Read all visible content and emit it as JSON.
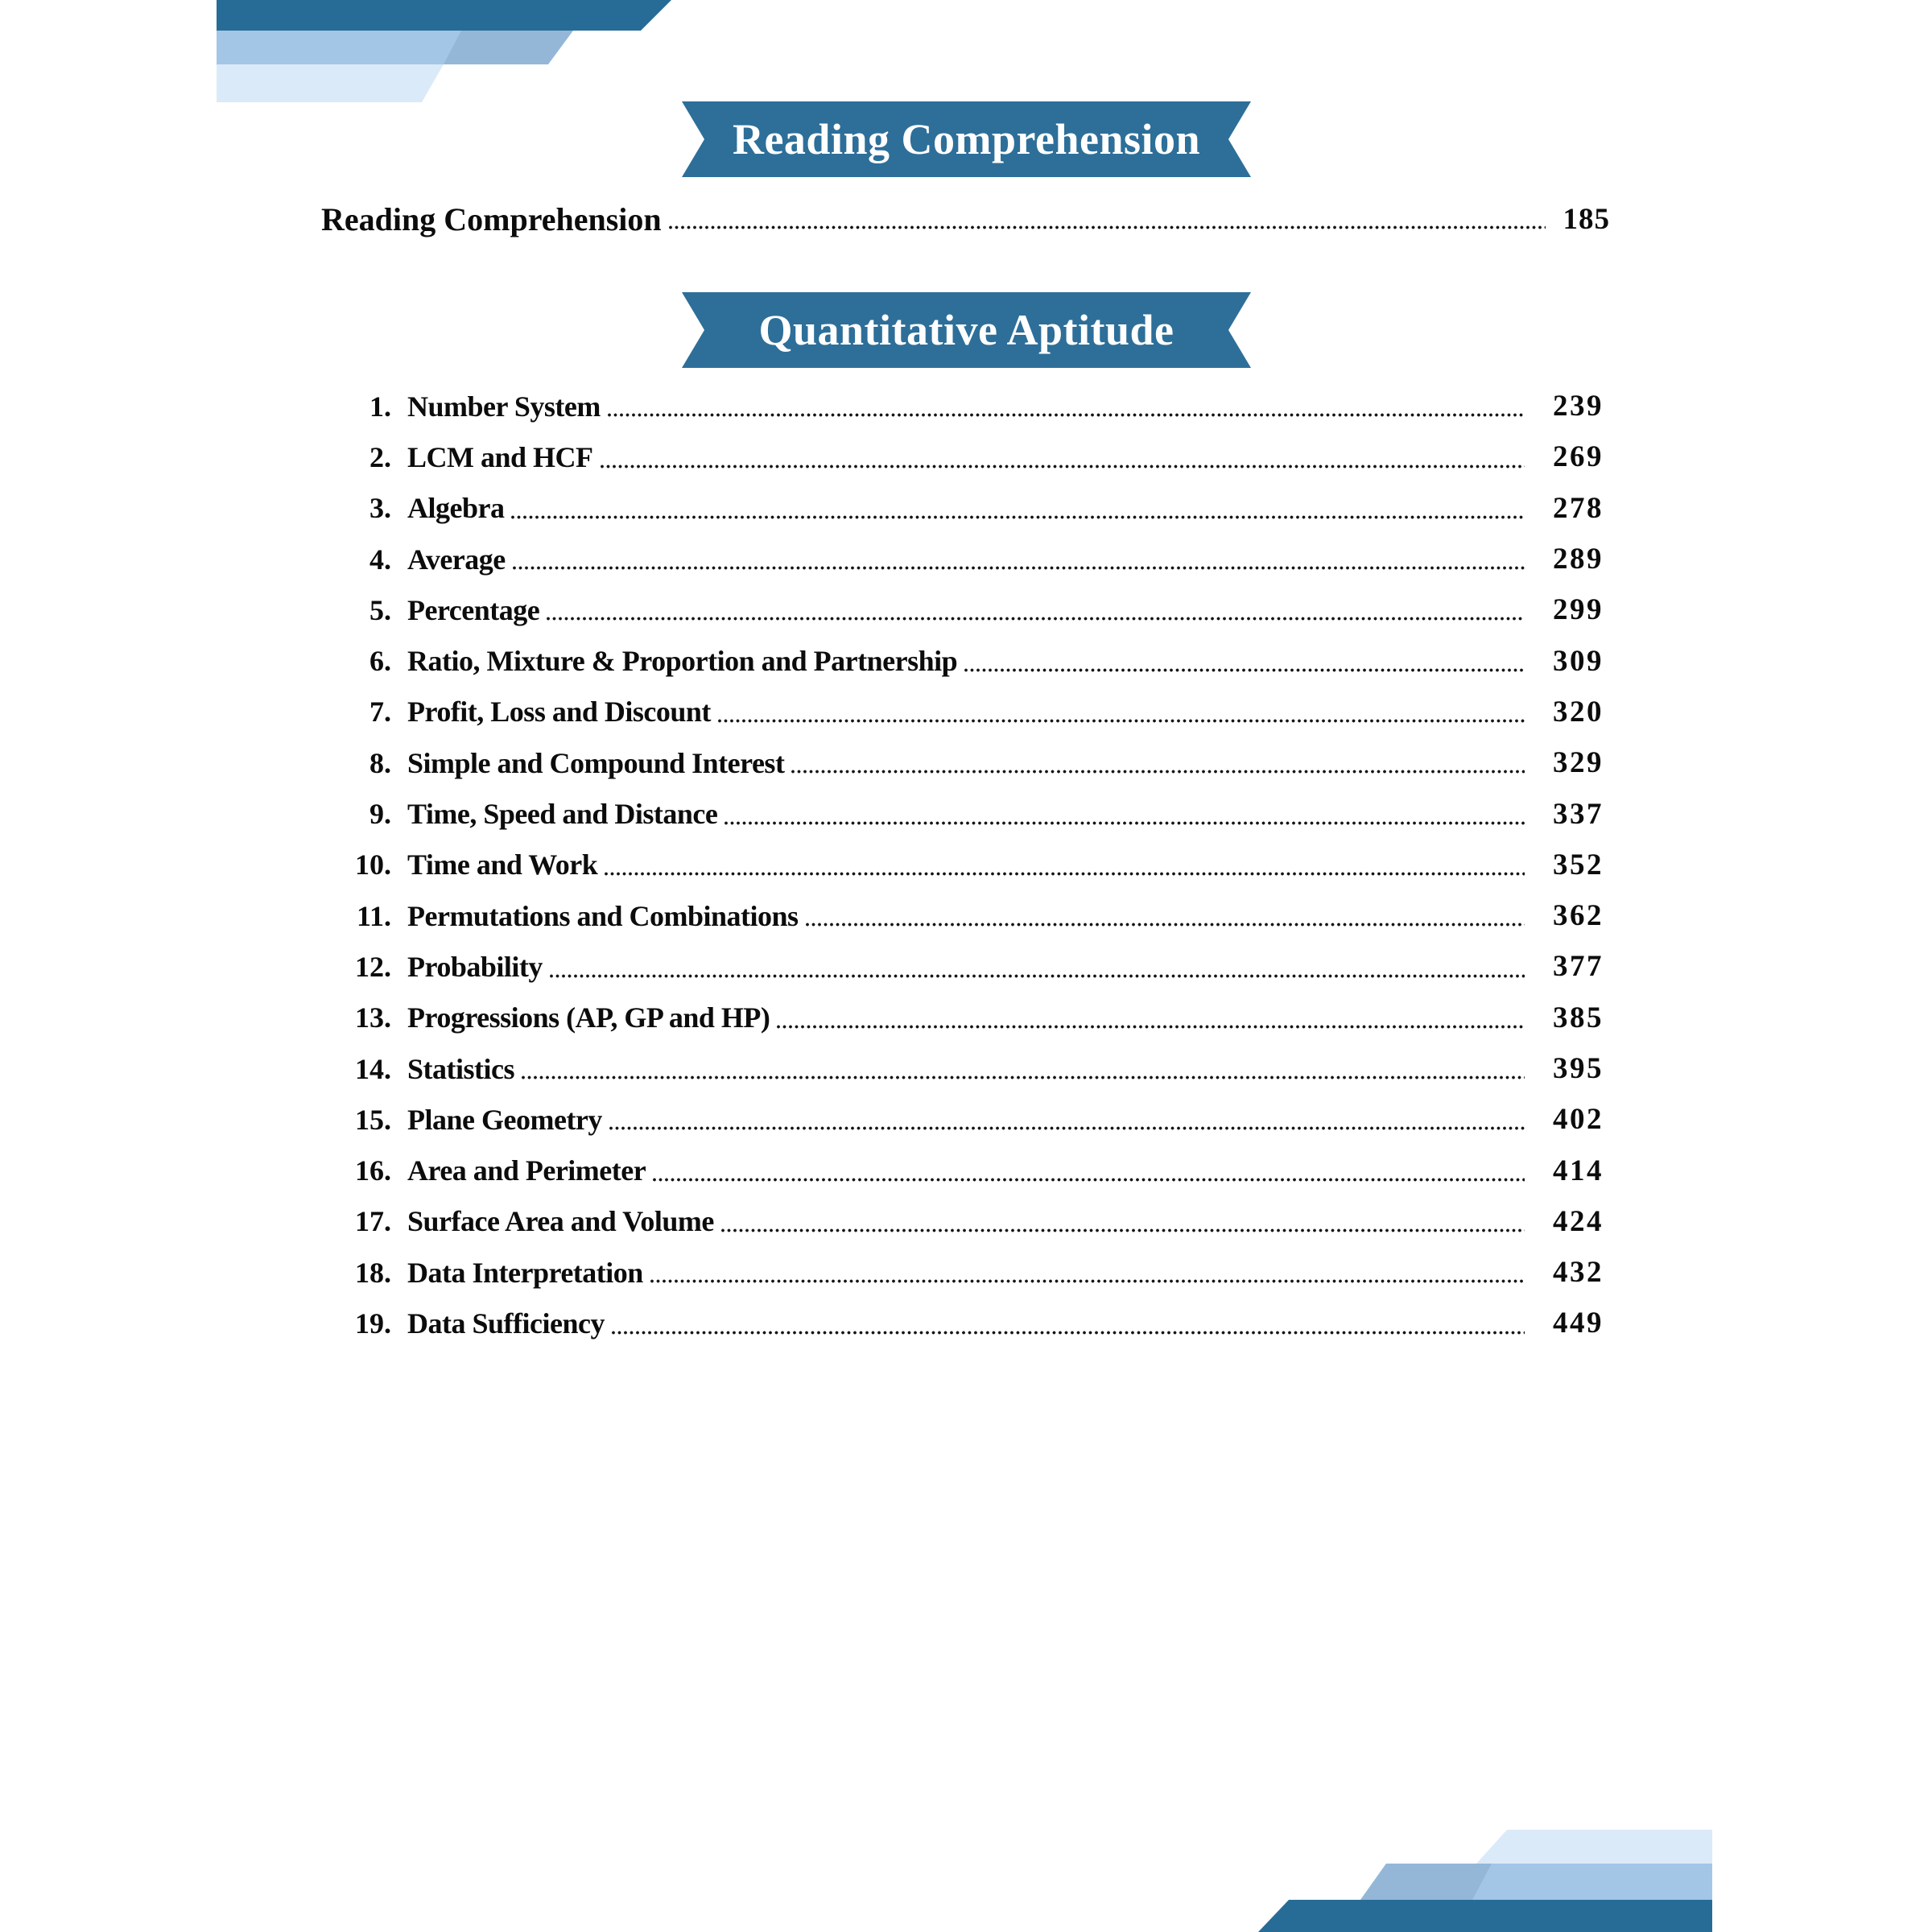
{
  "banners": [
    {
      "label": "Reading Comprehension"
    },
    {
      "label": "Quantitative Aptitude"
    }
  ],
  "rc_entry": {
    "title": "Reading Comprehension",
    "page": "185"
  },
  "chapters": [
    {
      "num": "1.",
      "title": "Number System",
      "page": "239"
    },
    {
      "num": "2.",
      "title": "LCM and HCF",
      "page": "269"
    },
    {
      "num": "3.",
      "title": "Algebra",
      "page": "278"
    },
    {
      "num": "4.",
      "title": "Average",
      "page": "289"
    },
    {
      "num": "5.",
      "title": "Percentage",
      "page": "299"
    },
    {
      "num": "6.",
      "title": "Ratio, Mixture & Proportion and Partnership",
      "page": "309"
    },
    {
      "num": "7.",
      "title": "Profit, Loss and Discount",
      "page": "320"
    },
    {
      "num": "8.",
      "title": "Simple and Compound Interest",
      "page": "329"
    },
    {
      "num": "9.",
      "title": "Time, Speed and Distance",
      "page": "337"
    },
    {
      "num": "10.",
      "title": "Time and Work",
      "page": "352"
    },
    {
      "num": "11.",
      "title": "Permutations and Combinations",
      "page": "362"
    },
    {
      "num": "12.",
      "title": "Probability",
      "page": "377"
    },
    {
      "num": "13.",
      "title": "Progressions (AP, GP and HP)",
      "page": "385"
    },
    {
      "num": "14.",
      "title": "Statistics",
      "page": "395"
    },
    {
      "num": "15.",
      "title": "Plane Geometry",
      "page": "402"
    },
    {
      "num": "16.",
      "title": "Area and Perimeter",
      "page": "414"
    },
    {
      "num": "17.",
      "title": "Surface Area and Volume",
      "page": "424"
    },
    {
      "num": "18.",
      "title": "Data Interpretation",
      "page": "432"
    },
    {
      "num": "19.",
      "title": "Data Sufficiency",
      "page": "449"
    }
  ],
  "colors": {
    "ribbon_blue": "#2d6f99",
    "band_dark_blue": "#276c96",
    "band_medium_blue": "#94b7d8",
    "band_light_medium_blue": "#a3c6e6",
    "band_pale_blue": "#dbeaf8",
    "text": "#0c0c0c",
    "ribbon_text": "#ffffff"
  }
}
